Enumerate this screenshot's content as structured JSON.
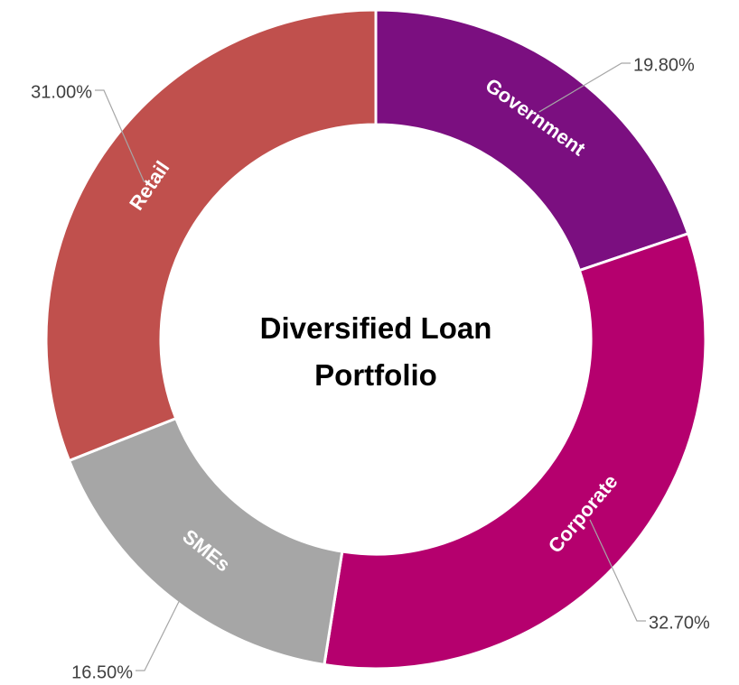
{
  "chart_data": {
    "type": "donut",
    "title": "Diversified Loan Portfolio",
    "categories": [
      "Government",
      "Corporate",
      "SMEs",
      "Retail"
    ],
    "values": [
      19.8,
      32.7,
      16.5,
      31.0
    ],
    "value_labels": [
      "19.80%",
      "32.70%",
      "16.50%",
      "31.00%"
    ],
    "colors": [
      "#7b0f80",
      "#b5006e",
      "#a6a6a6",
      "#c0504d"
    ]
  }
}
